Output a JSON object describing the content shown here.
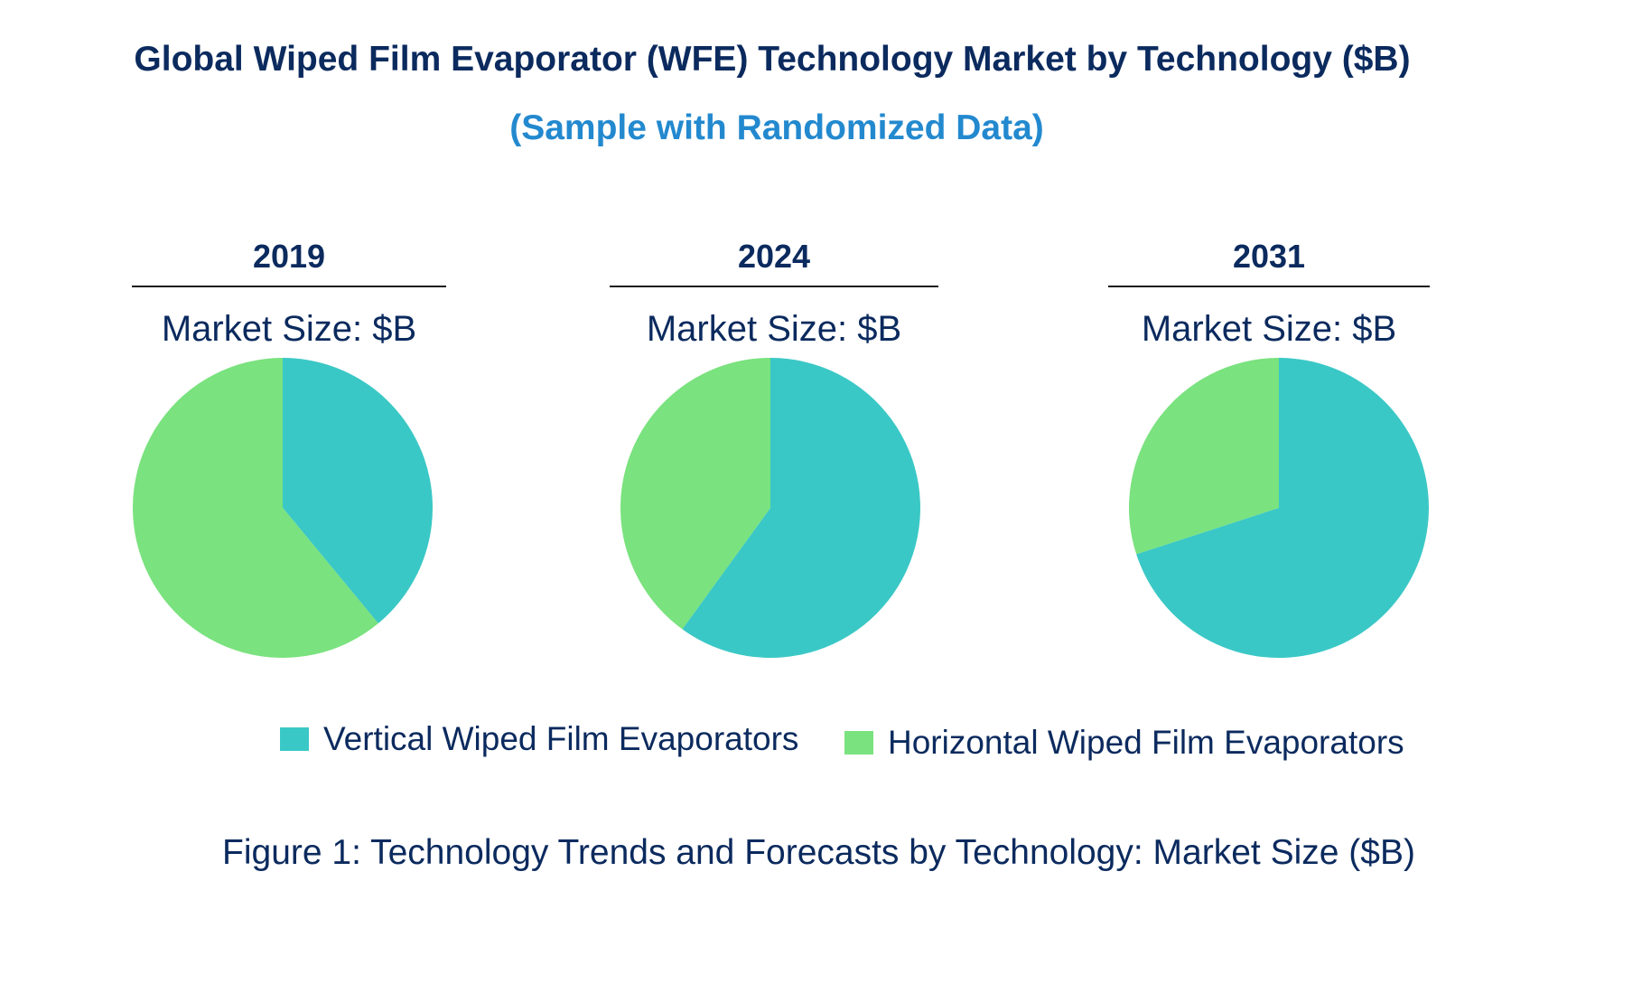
{
  "title": "Global Wiped Film Evaporator (WFE) Technology Market by Technology ($B)",
  "subtitle": "(Sample with Randomized Data)",
  "caption": "Figure 1: Technology Trends and Forecasts by Technology: Market Size ($B)",
  "colors": {
    "vertical": "#3ac8c6",
    "horizontal": "#7ae27e",
    "text": "#0b2a5e",
    "subtitle": "#2389cf"
  },
  "chart_data": [
    {
      "type": "pie",
      "title": "2019",
      "subtitle": "Market Size: $B",
      "labels": [
        "Vertical Wiped Film Evaporators",
        "Horizontal Wiped Film Evaporators"
      ],
      "values": [
        39,
        61
      ],
      "start_angle": "12 o'clock",
      "direction": "clockwise"
    },
    {
      "type": "pie",
      "title": "2024",
      "subtitle": "Market Size: $B",
      "labels": [
        "Vertical Wiped Film Evaporators",
        "Horizontal Wiped Film Evaporators"
      ],
      "values": [
        60,
        40
      ],
      "start_angle": "12 o'clock",
      "direction": "clockwise"
    },
    {
      "type": "pie",
      "title": "2031",
      "subtitle": "Market Size: $B",
      "labels": [
        "Vertical Wiped Film Evaporators",
        "Horizontal Wiped Film Evaporators"
      ],
      "values": [
        70,
        30
      ],
      "start_angle": "12 o'clock",
      "direction": "clockwise"
    }
  ],
  "legend": {
    "placement": "bottom-center",
    "items": [
      {
        "label": "Vertical Wiped Film Evaporators",
        "color": "#3ac8c6"
      },
      {
        "label": "Horizontal Wiped Film Evaporators",
        "color": "#7ae27e"
      }
    ]
  }
}
